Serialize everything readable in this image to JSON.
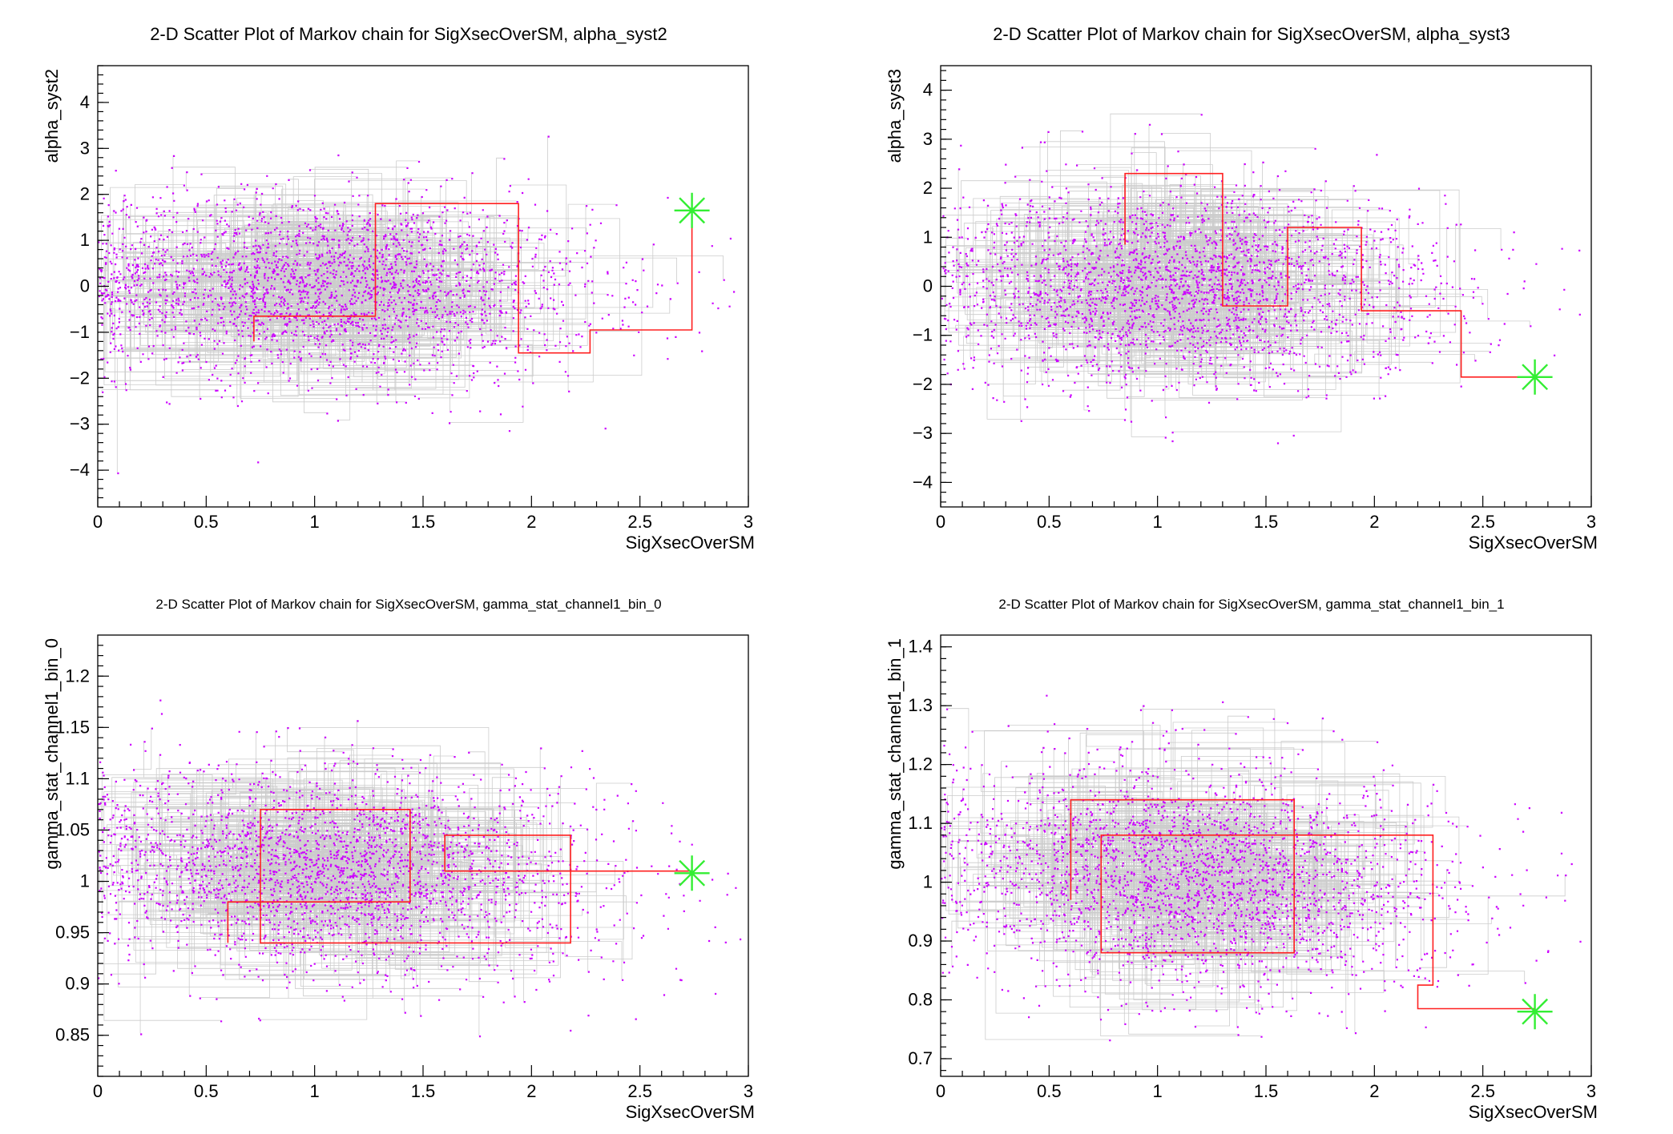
{
  "chart_data": [
    {
      "type": "scatter",
      "title": "2-D Scatter Plot of Markov chain for SigXsecOverSM, alpha_syst2",
      "xlabel": "SigXsecOverSM",
      "ylabel": "alpha_syst2",
      "xlim": [
        0,
        3
      ],
      "ylim": [
        -4.8,
        4.8
      ],
      "xticks": [
        0,
        0.5,
        1,
        1.5,
        2,
        2.5,
        3
      ],
      "xtick_labels": [
        "0",
        "0.5",
        "1",
        "1.5",
        "2",
        "2.5",
        "3"
      ],
      "yticks": [
        -4,
        -3,
        -2,
        -1,
        0,
        1,
        2,
        3,
        4
      ],
      "ytick_labels": [
        "−4",
        "−3",
        "−2",
        "−1",
        "0",
        "1",
        "2",
        "3",
        "4"
      ],
      "point_color": "#cc00ff",
      "chain_line_color": "#bbbbbb",
      "cloud": {
        "x_center": 1.05,
        "x_sigma": 0.62,
        "y_center": 0.0,
        "y_sigma": 1.0,
        "slope": -0.15
      },
      "red_path": [
        [
          0.72,
          -1.2
        ],
        [
          0.72,
          -0.65
        ],
        [
          1.28,
          -0.65
        ],
        [
          1.28,
          1.8
        ],
        [
          1.94,
          1.8
        ],
        [
          1.94,
          -1.45
        ],
        [
          2.27,
          -1.45
        ],
        [
          2.27,
          -0.95
        ],
        [
          2.74,
          -0.95
        ],
        [
          2.74,
          1.65
        ]
      ],
      "best_fit": {
        "x": 2.74,
        "y": 1.65,
        "color": "#33ee33"
      }
    },
    {
      "type": "scatter",
      "title": "2-D Scatter Plot of Markov chain for SigXsecOverSM, alpha_syst3",
      "xlabel": "SigXsecOverSM",
      "ylabel": "alpha_syst3",
      "xlim": [
        0,
        3
      ],
      "ylim": [
        -4.5,
        4.5
      ],
      "xticks": [
        0,
        0.5,
        1,
        1.5,
        2,
        2.5,
        3
      ],
      "xtick_labels": [
        "0",
        "0.5",
        "1",
        "1.5",
        "2",
        "2.5",
        "3"
      ],
      "yticks": [
        -4,
        -3,
        -2,
        -1,
        0,
        1,
        2,
        3,
        4
      ],
      "ytick_labels": [
        "−4",
        "−3",
        "−2",
        "−1",
        "0",
        "1",
        "2",
        "3",
        "4"
      ],
      "point_color": "#cc00ff",
      "chain_line_color": "#bbbbbb",
      "cloud": {
        "x_center": 1.1,
        "x_sigma": 0.6,
        "y_center": 0.0,
        "y_sigma": 1.0,
        "slope": -0.1
      },
      "red_path": [
        [
          0.85,
          0.85
        ],
        [
          0.85,
          2.3
        ],
        [
          1.3,
          2.3
        ],
        [
          1.3,
          -0.4
        ],
        [
          1.6,
          -0.4
        ],
        [
          1.6,
          1.2
        ],
        [
          1.94,
          1.2
        ],
        [
          1.94,
          -0.5
        ],
        [
          2.4,
          -0.5
        ],
        [
          2.4,
          -1.85
        ],
        [
          2.74,
          -1.85
        ]
      ],
      "best_fit": {
        "x": 2.74,
        "y": -1.85,
        "color": "#33ee33"
      }
    },
    {
      "type": "scatter",
      "title": "2-D Scatter Plot of Markov chain for SigXsecOverSM, gamma_stat_channel1_bin_0",
      "xlabel": "SigXsecOverSM",
      "ylabel": "gamma_stat_channel1_bin_0",
      "xlim": [
        0,
        3
      ],
      "ylim": [
        0.81,
        1.24
      ],
      "xticks": [
        0,
        0.5,
        1,
        1.5,
        2,
        2.5,
        3
      ],
      "xtick_labels": [
        "0",
        "0.5",
        "1",
        "1.5",
        "2",
        "2.5",
        "3"
      ],
      "yticks": [
        0.85,
        0.9,
        0.95,
        1,
        1.05,
        1.1,
        1.15,
        1.2
      ],
      "ytick_labels": [
        "0.85",
        "0.9",
        "0.95",
        "1",
        "1.05",
        "1.1",
        "1.15",
        "1.2"
      ],
      "point_color": "#cc00ff",
      "chain_line_color": "#bbbbbb",
      "cloud": {
        "x_center": 1.1,
        "x_sigma": 0.62,
        "y_center": 1.01,
        "y_sigma": 0.05,
        "slope": -0.012
      },
      "red_path": [
        [
          0.6,
          0.94
        ],
        [
          0.6,
          0.98
        ],
        [
          1.44,
          0.98
        ],
        [
          1.44,
          1.07
        ],
        [
          0.75,
          1.07
        ],
        [
          0.75,
          0.94
        ],
        [
          2.18,
          0.94
        ],
        [
          2.18,
          1.045
        ],
        [
          1.6,
          1.045
        ],
        [
          1.6,
          1.01
        ],
        [
          2.74,
          1.01
        ]
      ],
      "best_fit": {
        "x": 2.74,
        "y": 1.008,
        "color": "#33ee33"
      }
    },
    {
      "type": "scatter",
      "title": "2-D Scatter Plot of Markov chain for SigXsecOverSM, gamma_stat_channel1_bin_1",
      "xlabel": "SigXsecOverSM",
      "ylabel": "gamma_stat_channel1_bin_1",
      "xlim": [
        0,
        3
      ],
      "ylim": [
        0.67,
        1.42
      ],
      "xticks": [
        0,
        0.5,
        1,
        1.5,
        2,
        2.5,
        3
      ],
      "xtick_labels": [
        "0",
        "0.5",
        "1",
        "1.5",
        "2",
        "2.5",
        "3"
      ],
      "yticks": [
        0.7,
        0.8,
        0.9,
        1,
        1.1,
        1.2,
        1.3,
        1.4
      ],
      "ytick_labels": [
        "0.7",
        "0.8",
        "0.9",
        "1",
        "1.1",
        "1.2",
        "1.3",
        "1.4"
      ],
      "point_color": "#cc00ff",
      "chain_line_color": "#bbbbbb",
      "cloud": {
        "x_center": 1.15,
        "x_sigma": 0.6,
        "y_center": 1.01,
        "y_sigma": 0.095,
        "slope": -0.03
      },
      "red_path": [
        [
          0.6,
          0.97
        ],
        [
          0.6,
          1.14
        ],
        [
          1.63,
          1.14
        ],
        [
          1.63,
          0.88
        ],
        [
          0.74,
          0.88
        ],
        [
          0.74,
          1.08
        ],
        [
          2.27,
          1.08
        ],
        [
          2.27,
          0.825
        ],
        [
          2.2,
          0.825
        ],
        [
          2.2,
          0.785
        ],
        [
          2.74,
          0.785
        ]
      ],
      "best_fit": {
        "x": 2.74,
        "y": 0.78,
        "color": "#33ee33"
      }
    }
  ]
}
